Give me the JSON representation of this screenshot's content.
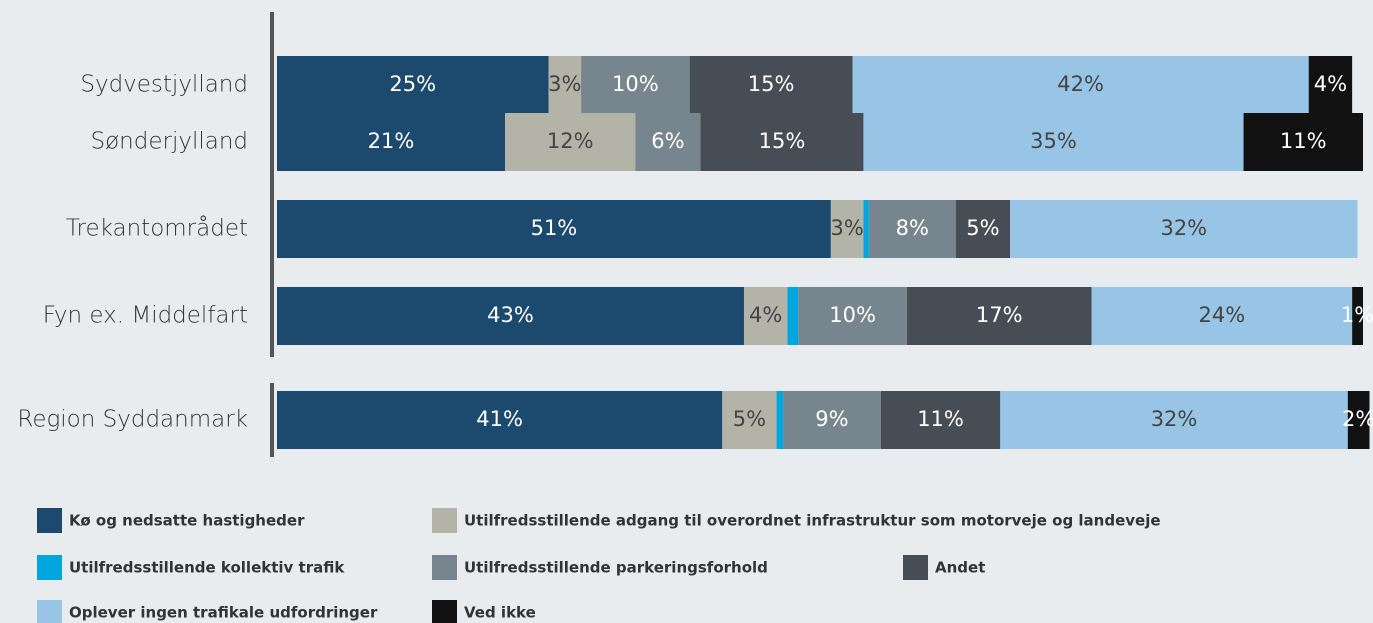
{
  "chart_data": {
    "type": "stacked_barh",
    "categories": [
      "Sydvestjylland",
      "Sønderjylland",
      "Trekantområdet",
      "Fyn ex. Middelfart",
      "Region Syddanmark"
    ],
    "xlim": [
      0,
      100
    ],
    "series": [
      {
        "name": "Kø og nedsatte hastigheder",
        "color": "#1c4a6e",
        "values": [
          25,
          21,
          51,
          43,
          41
        ],
        "value_labels": [
          "25%",
          "21%",
          "51%",
          "43%",
          "41%"
        ]
      },
      {
        "name": "Utilfredsstillende adgang til overordnet infrastruktur som motorveje og landeveje",
        "color": "#b3b3a8",
        "values": [
          3,
          12,
          3,
          4,
          5
        ],
        "value_labels": [
          "3%",
          "12%",
          "3%",
          "4%",
          "5%"
        ]
      },
      {
        "name": "Utilfredsstillende kollektiv trafik",
        "color": "#00a6e0",
        "values": [
          null,
          null,
          0.5,
          1,
          0.6
        ],
        "value_labels": [
          null,
          null,
          null,
          null,
          null
        ]
      },
      {
        "name": "Utilfredsstillende parkeringsforhold",
        "color": "#77858f",
        "values": [
          10,
          6,
          8,
          10,
          9
        ],
        "value_labels": [
          "10%",
          "6%",
          "8%",
          "10%",
          "9%"
        ]
      },
      {
        "name": "Andet",
        "color": "#464d55",
        "values": [
          15,
          15,
          5,
          17,
          11
        ],
        "value_labels": [
          "15%",
          "15%",
          "5%",
          "17%",
          "11%"
        ]
      },
      {
        "name": "Oplever ingen trafikale udfordringer",
        "color": "#98c5e6",
        "values": [
          42,
          35,
          32,
          24,
          32
        ],
        "value_labels": [
          "42%",
          "35%",
          "32%",
          "24%",
          "32%"
        ]
      },
      {
        "name": "Ved ikke",
        "color": "#111111",
        "values": [
          4,
          11,
          null,
          1,
          2
        ],
        "value_labels": [
          "4%",
          "11%",
          null,
          "1%",
          "2%"
        ]
      }
    ]
  }
}
